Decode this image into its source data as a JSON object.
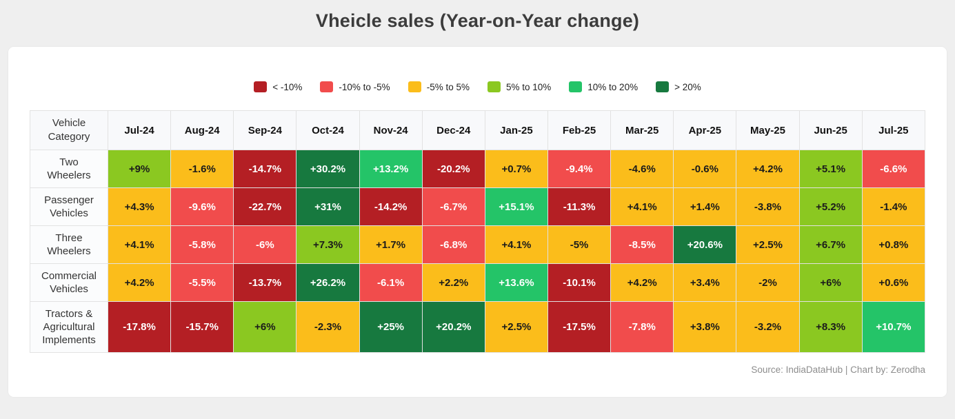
{
  "title": "Vheicle sales (Year-on-Year change)",
  "source": "Source: IndiaDataHub | Chart by: Zerodha",
  "chart_data": {
    "type": "heatmap",
    "title": "Vheicle sales (Year-on-Year change)",
    "row_header": "Vehicle Category",
    "columns": [
      "Jul-24",
      "Aug-24",
      "Sep-24",
      "Oct-24",
      "Nov-24",
      "Dec-24",
      "Jan-25",
      "Feb-25",
      "Mar-25",
      "Apr-25",
      "May-25",
      "Jun-25",
      "Jul-25"
    ],
    "rows": [
      {
        "category": "Two Wheelers",
        "values": [
          "+9%",
          "-1.6%",
          "-14.7%",
          "+30.2%",
          "+13.2%",
          "-20.2%",
          "+0.7%",
          "-9.4%",
          "-4.6%",
          "-0.6%",
          "+4.2%",
          "+5.1%",
          "-6.6%"
        ]
      },
      {
        "category": "Passenger Vehicles",
        "values": [
          "+4.3%",
          "-9.6%",
          "-22.7%",
          "+31%",
          "-14.2%",
          "-6.7%",
          "+15.1%",
          "-11.3%",
          "+4.1%",
          "+1.4%",
          "-3.8%",
          "+5.2%",
          "-1.4%"
        ]
      },
      {
        "category": "Three Wheelers",
        "values": [
          "+4.1%",
          "-5.8%",
          "-6%",
          "+7.3%",
          "+1.7%",
          "-6.8%",
          "+4.1%",
          "-5%",
          "-8.5%",
          "+20.6%",
          "+2.5%",
          "+6.7%",
          "+0.8%"
        ]
      },
      {
        "category": "Commercial Vehicles",
        "values": [
          "+4.2%",
          "-5.5%",
          "-13.7%",
          "+26.2%",
          "-6.1%",
          "+2.2%",
          "+13.6%",
          "-10.1%",
          "+4.2%",
          "+3.4%",
          "-2%",
          "+6%",
          "+0.6%"
        ]
      },
      {
        "category": "Tractors & Agricultural Implements",
        "values": [
          "-17.8%",
          "-15.7%",
          "+6%",
          "-2.3%",
          "+25%",
          "+20.2%",
          "+2.5%",
          "-17.5%",
          "-7.8%",
          "+3.8%",
          "-3.2%",
          "+8.3%",
          "+10.7%"
        ]
      }
    ],
    "color_bins": [
      {
        "label": "< -10%",
        "max": -10,
        "inclusive": false,
        "bg": "#b41f24",
        "text": "#ffffff"
      },
      {
        "label": "-10% to -5%",
        "max": -5,
        "inclusive": false,
        "bg": "#f14c4c",
        "text": "#ffffff"
      },
      {
        "label": "-5% to 5%",
        "max": 5,
        "inclusive": true,
        "bg": "#fbbd1b",
        "text": "#1b1b1b"
      },
      {
        "label": "5% to 10%",
        "max": 10,
        "inclusive": true,
        "bg": "#8bc821",
        "text": "#1b1b1b"
      },
      {
        "label": "10% to 20%",
        "max": 20,
        "inclusive": true,
        "bg": "#24c468",
        "text": "#ffffff"
      },
      {
        "label": "> 20%",
        "max": null,
        "inclusive": true,
        "bg": "#17793f",
        "text": "#ffffff"
      }
    ]
  }
}
